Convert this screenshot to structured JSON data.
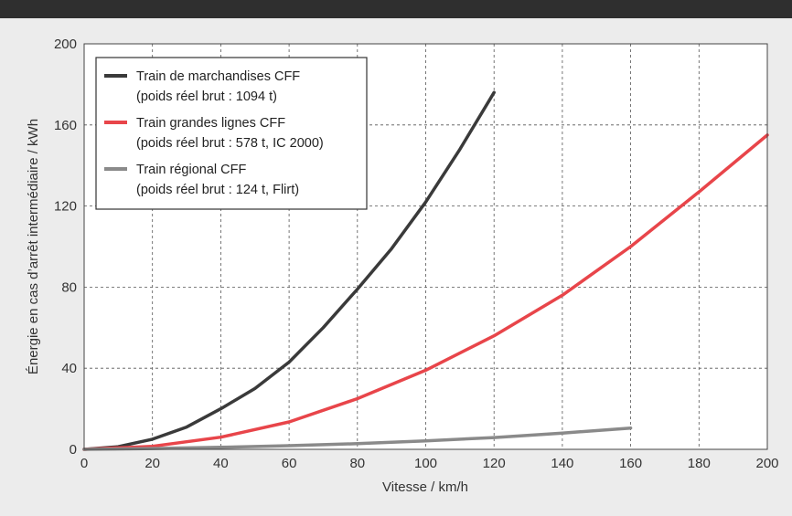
{
  "chart_data": {
    "type": "line",
    "xlabel": "Vitesse / km/h",
    "ylabel": "Énergie en cas d’arrêt intermédiaire / kWh",
    "xlim": [
      0,
      200
    ],
    "ylim": [
      0,
      200
    ],
    "x_ticks": [
      "0",
      "20",
      "40",
      "60",
      "80",
      "100",
      "120",
      "140",
      "160",
      "180",
      "200"
    ],
    "y_ticks": [
      "0",
      "40",
      "80",
      "120",
      "160",
      "200"
    ],
    "grid": true,
    "legend_position": "top-left",
    "series": [
      {
        "name": "Train de marchandises CFF",
        "subtitle": "(poids réel brut : 1094 t)",
        "color": "#3a3a3a",
        "x": [
          0,
          10,
          20,
          30,
          40,
          50,
          60,
          70,
          80,
          90,
          100,
          110,
          120
        ],
        "y": [
          0,
          1.3,
          5,
          11,
          20,
          30,
          43,
          60,
          79,
          99,
          122,
          148,
          176
        ]
      },
      {
        "name": "Train grandes lignes CFF",
        "subtitle": "(poids réel brut : 578 t, IC 2000)",
        "color": "#e8454a",
        "x": [
          0,
          20,
          40,
          60,
          80,
          100,
          120,
          140,
          160,
          180,
          200
        ],
        "y": [
          0,
          1.5,
          6,
          13.5,
          25,
          39,
          56,
          76,
          100,
          127,
          155
        ]
      },
      {
        "name": "Train régional CFF",
        "subtitle": "(poids réel brut : 124 t, Flirt)",
        "color": "#8a8a8a",
        "x": [
          0,
          20,
          40,
          60,
          80,
          100,
          120,
          140,
          160
        ],
        "y": [
          0,
          0.4,
          1,
          1.8,
          2.8,
          4.2,
          5.8,
          8,
          10.5
        ]
      }
    ]
  }
}
